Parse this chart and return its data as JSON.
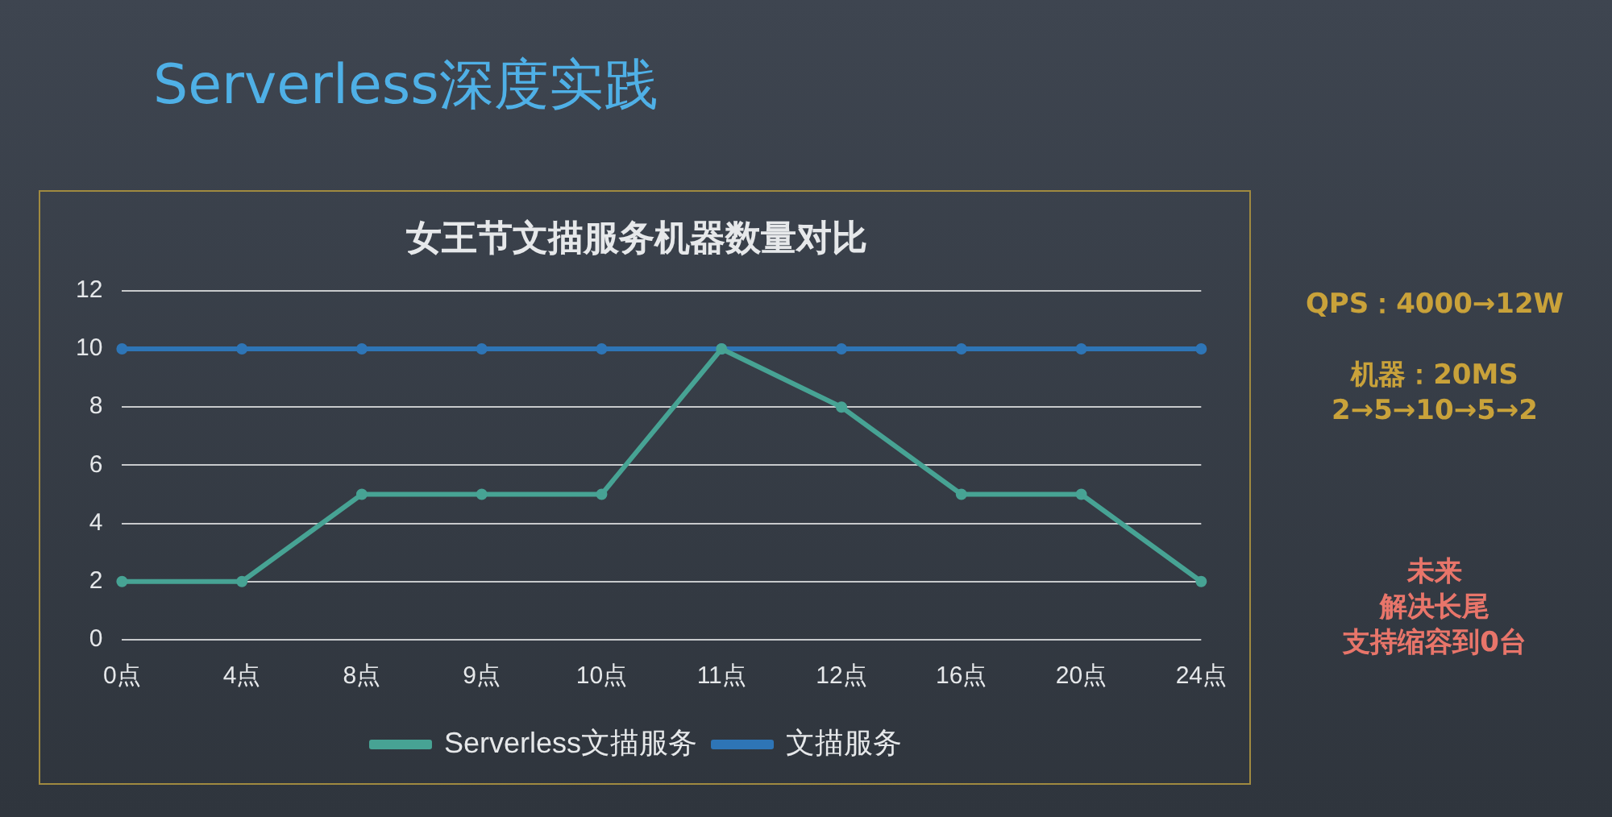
{
  "chart_data": {
    "type": "line",
    "title": "女王节文描服务机器数量对比",
    "categories": [
      "0点",
      "4点",
      "8点",
      "9点",
      "10点",
      "11点",
      "12点",
      "16点",
      "20点",
      "24点"
    ],
    "series": [
      {
        "name": "文描服务",
        "color": "#2e75b6",
        "values": [
          10,
          10,
          10,
          10,
          10,
          10,
          10,
          10,
          10,
          10
        ]
      },
      {
        "name": "Serverless文描服务",
        "color": "#47a394",
        "values": [
          2,
          2,
          5,
          5,
          5,
          10,
          8,
          5,
          5,
          2
        ]
      }
    ],
    "ylim": [
      0,
      12
    ],
    "yticks": [
      0,
      2,
      4,
      6,
      8,
      10,
      12
    ],
    "grid": "y",
    "legend": "bottom",
    "marker": "circle",
    "line_style": "solid",
    "annotations": [
      "Serverless深度实践",
      "QPS：4000→12W",
      "机器：20MS",
      "2→5→10→5→2",
      "未来",
      "解决长尾",
      "支持缩容到0台"
    ]
  }
}
